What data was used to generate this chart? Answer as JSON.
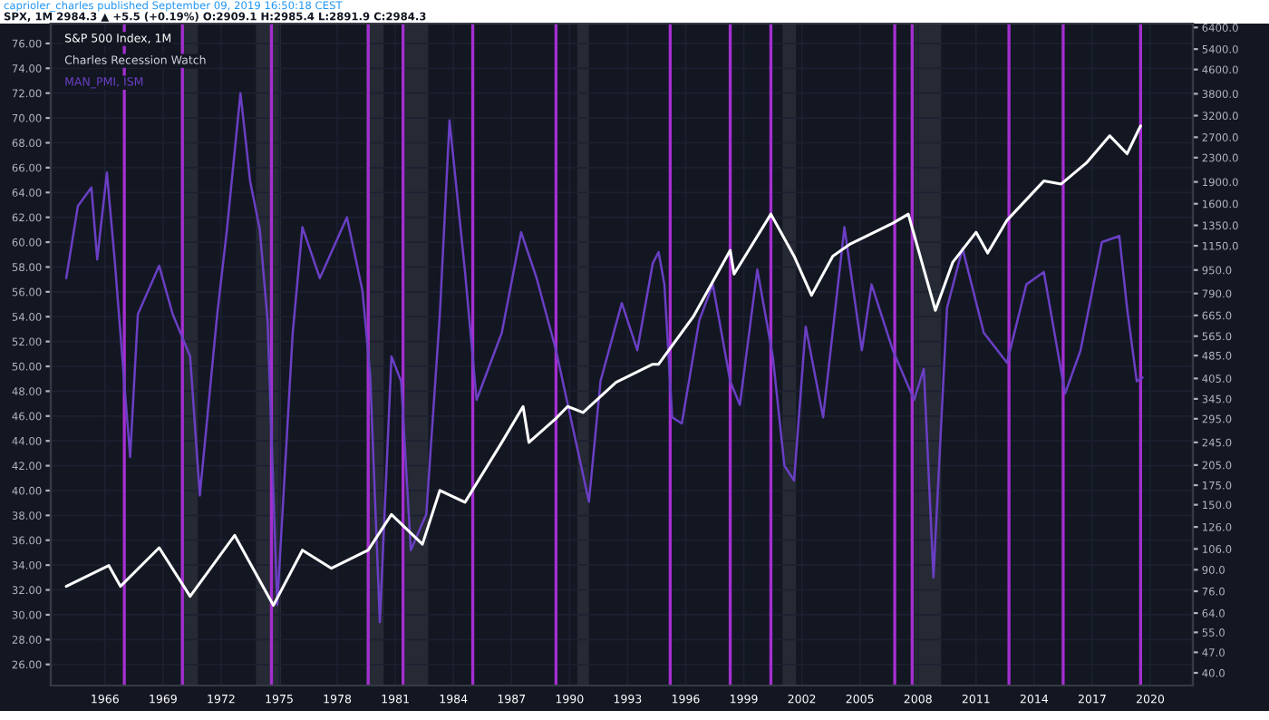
{
  "chart_data": {
    "type": "line",
    "title": "caprioler_charles published September 09, 2019 16:50:18 CEST",
    "subtitle": "SPX, 1M 2984.3 ▲ +5.5 (+0.19%) O:2909.1 H:2985.4 L:2891.9 C:2984.3",
    "annotations": [
      "Charles Recession Watch"
    ],
    "series": [
      {
        "name": "S&P 500 Index, 1M",
        "color": "#ffffff",
        "axis": "y2",
        "x": [
          1964.0,
          1966.2,
          1966.8,
          1968.8,
          1970.4,
          1972.7,
          1974.7,
          1976.2,
          1977.7,
          1979.6,
          1980.8,
          1982.4,
          1983.3,
          1984.6,
          1986.5,
          1987.6,
          1987.9,
          1989.3,
          1989.9,
          1990.7,
          1992.4,
          1994.3,
          1994.6,
          1996.4,
          1998.3,
          1998.5,
          2000.4,
          2001.6,
          2002.5,
          2003.6,
          2004.5,
          2006.7,
          2007.5,
          2008.9,
          2009.8,
          2011.0,
          2011.6,
          2012.6,
          2014.5,
          2015.4,
          2016.7,
          2017.9,
          2018.8,
          2019.4,
          2019.5
        ],
        "values": [
          79,
          93,
          79,
          107,
          73,
          118,
          68,
          105,
          91,
          105,
          139,
          110,
          168,
          153,
          245,
          325,
          245,
          296,
          325,
          310,
          393,
          453,
          453,
          660,
          1110,
          920,
          1475,
          1060,
          779,
          1060,
          1166,
          1373,
          1475,
          692,
          1011,
          1279,
          1086,
          1406,
          1914,
          1869,
          2206,
          2733,
          2371,
          2866,
          2950
        ]
      },
      {
        "name": "MAN_PMI, ISM",
        "color": "#6a3fc4",
        "axis": "y",
        "x": [
          1964.0,
          1964.6,
          1965.3,
          1965.6,
          1966.1,
          1966.5,
          1967.3,
          1967.7,
          1968.8,
          1969.5,
          1970.4,
          1970.9,
          1971.8,
          1972.3,
          1973.0,
          1973.5,
          1974.0,
          1974.4,
          1974.9,
          1975.7,
          1976.2,
          1977.1,
          1978.5,
          1979.3,
          1979.7,
          1980.2,
          1980.8,
          1981.3,
          1981.8,
          1982.6,
          1983.3,
          1983.8,
          1984.6,
          1985.2,
          1986.5,
          1987.5,
          1988.3,
          1989.3,
          1991.0,
          1991.6,
          1992.7,
          1993.5,
          1994.3,
          1994.6,
          1994.9,
          1995.3,
          1995.8,
          1996.7,
          1997.4,
          1998.3,
          1998.8,
          1999.7,
          2000.5,
          2001.1,
          2001.6,
          2002.2,
          2003.1,
          2004.2,
          2005.1,
          2005.6,
          2006.7,
          2007.8,
          2008.3,
          2008.8,
          2009.5,
          2010.3,
          2011.4,
          2012.6,
          2013.6,
          2014.5,
          2015.6,
          2016.4,
          2017.5,
          2018.4,
          2018.8,
          2019.3,
          2019.6
        ],
        "values": [
          57.1,
          62.9,
          64.4,
          58.6,
          65.6,
          58.6,
          42.7,
          54.2,
          58.1,
          54.2,
          50.8,
          39.6,
          54.2,
          61.0,
          72.0,
          64.9,
          61.0,
          53.7,
          30.8,
          52.7,
          61.2,
          57.1,
          62.0,
          56.1,
          49.3,
          29.4,
          50.8,
          48.8,
          35.2,
          38.1,
          54.2,
          69.8,
          57.6,
          47.3,
          52.7,
          60.8,
          57.1,
          51.3,
          39.1,
          48.8,
          55.1,
          51.3,
          58.3,
          59.2,
          56.6,
          45.9,
          45.4,
          53.7,
          56.6,
          48.8,
          46.9,
          57.8,
          50.8,
          42.0,
          40.8,
          53.2,
          45.9,
          61.2,
          51.3,
          56.6,
          51.3,
          47.3,
          49.8,
          33.0,
          54.7,
          59.5,
          52.7,
          50.3,
          56.6,
          57.6,
          47.8,
          51.3,
          60.0,
          60.5,
          54.7,
          48.8,
          49.1
        ]
      }
    ],
    "xlim": [
      1963.2,
      2022.2
    ],
    "xticks": [
      1966,
      1969,
      1972,
      1975,
      1978,
      1981,
      1984,
      1987,
      1990,
      1993,
      1996,
      1999,
      2002,
      2005,
      2008,
      2011,
      2014,
      2017,
      2020
    ],
    "ylim": [
      24.3,
      77.6
    ],
    "yticks": [
      {
        "value": 26,
        "label": "26.00"
      },
      {
        "value": 28,
        "label": "28.00"
      },
      {
        "value": 30,
        "label": "30.00"
      },
      {
        "value": 32,
        "label": "32.00"
      },
      {
        "value": 34,
        "label": "34.00"
      },
      {
        "value": 36,
        "label": "36.00"
      },
      {
        "value": 38,
        "label": "38.00"
      },
      {
        "value": 40,
        "label": "40.00"
      },
      {
        "value": 42,
        "label": "42.00"
      },
      {
        "value": 44,
        "label": "44.00"
      },
      {
        "value": 46,
        "label": "46.00"
      },
      {
        "value": 48,
        "label": "48.00"
      },
      {
        "value": 50,
        "label": "50.00"
      },
      {
        "value": 52,
        "label": "52.00"
      },
      {
        "value": 54,
        "label": "54.00"
      },
      {
        "value": 56,
        "label": "56.00"
      },
      {
        "value": 58,
        "label": "58.00"
      },
      {
        "value": 60,
        "label": "60.00"
      },
      {
        "value": 62,
        "label": "62.00"
      },
      {
        "value": 64,
        "label": "64.00"
      },
      {
        "value": 66,
        "label": "66.00"
      },
      {
        "value": 68,
        "label": "68.00"
      },
      {
        "value": 70,
        "label": "70.00"
      },
      {
        "value": 72,
        "label": "72.00"
      },
      {
        "value": 74,
        "label": "74.00"
      },
      {
        "value": 76,
        "label": "76.00"
      }
    ],
    "log": "y2",
    "y2lim": [
      36.2,
      6600
    ],
    "y2ticks": [
      {
        "value": 40,
        "label": "40.0"
      },
      {
        "value": 47,
        "label": "47.0"
      },
      {
        "value": 55,
        "label": "55.0"
      },
      {
        "value": 64,
        "label": "64.0"
      },
      {
        "value": 76,
        "label": "76.0"
      },
      {
        "value": 90,
        "label": "90.0"
      },
      {
        "value": 106,
        "label": "106.0"
      },
      {
        "value": 126,
        "label": "126.0"
      },
      {
        "value": 150,
        "label": "150.0"
      },
      {
        "value": 175,
        "label": "175.0"
      },
      {
        "value": 205,
        "label": "205.0"
      },
      {
        "value": 245,
        "label": "245.0"
      },
      {
        "value": 295,
        "label": "295.0"
      },
      {
        "value": 345,
        "label": "345.0"
      },
      {
        "value": 405,
        "label": "405.0"
      },
      {
        "value": 485,
        "label": "485.0"
      },
      {
        "value": 565,
        "label": "565.0"
      },
      {
        "value": 665,
        "label": "665.0"
      },
      {
        "value": 790,
        "label": "790.0"
      },
      {
        "value": 950,
        "label": "950.0"
      },
      {
        "value": 1150,
        "label": "1150.0"
      },
      {
        "value": 1350,
        "label": "1350.0"
      },
      {
        "value": 1600,
        "label": "1600.0"
      },
      {
        "value": 1900,
        "label": "1900.0"
      },
      {
        "value": 2300,
        "label": "2300.0"
      },
      {
        "value": 2700,
        "label": "2700.0"
      },
      {
        "value": 3200,
        "label": "3200.0"
      },
      {
        "value": 3800,
        "label": "3800.0"
      },
      {
        "value": 4600,
        "label": "4600.0"
      },
      {
        "value": 5400,
        "label": "5400.0"
      },
      {
        "value": 6400,
        "label": "6400.0"
      }
    ],
    "ref_lines": [
      {
        "axis": "x",
        "value": 1967.0,
        "color": "#a42fd0"
      },
      {
        "axis": "x",
        "value": 1970.0,
        "color": "#a42fd0"
      },
      {
        "axis": "x",
        "value": 1974.6,
        "color": "#a42fd0"
      },
      {
        "axis": "x",
        "value": 1979.6,
        "color": "#a42fd0"
      },
      {
        "axis": "x",
        "value": 1981.4,
        "color": "#a42fd0"
      },
      {
        "axis": "x",
        "value": 1985.0,
        "color": "#a42fd0"
      },
      {
        "axis": "x",
        "value": 1989.3,
        "color": "#a42fd0"
      },
      {
        "axis": "x",
        "value": 1995.2,
        "color": "#a42fd0"
      },
      {
        "axis": "x",
        "value": 1998.3,
        "color": "#a42fd0"
      },
      {
        "axis": "x",
        "value": 2000.4,
        "color": "#a42fd0"
      },
      {
        "axis": "x",
        "value": 2006.8,
        "color": "#a42fd0"
      },
      {
        "axis": "x",
        "value": 2007.7,
        "color": "#a42fd0"
      },
      {
        "axis": "x",
        "value": 2012.7,
        "color": "#a42fd0"
      },
      {
        "axis": "x",
        "value": 2015.5,
        "color": "#a42fd0"
      },
      {
        "axis": "x",
        "value": 2019.5,
        "color": "#a42fd0"
      }
    ],
    "bands": [
      {
        "axis": "x",
        "from": 1970.0,
        "to": 1970.8,
        "color": "#262a35"
      },
      {
        "axis": "x",
        "from": 1973.8,
        "to": 1975.1,
        "color": "#262a35"
      },
      {
        "axis": "x",
        "from": 1979.5,
        "to": 1980.4,
        "color": "#262a35"
      },
      {
        "axis": "x",
        "from": 1981.5,
        "to": 1982.7,
        "color": "#262a35"
      },
      {
        "axis": "x",
        "from": 1990.4,
        "to": 1991.0,
        "color": "#262a35"
      },
      {
        "axis": "x",
        "from": 2001.0,
        "to": 2001.7,
        "color": "#262a35"
      },
      {
        "axis": "x",
        "from": 2007.8,
        "to": 2009.2,
        "color": "#262a35"
      }
    ],
    "grid": true,
    "legend": "top left"
  }
}
